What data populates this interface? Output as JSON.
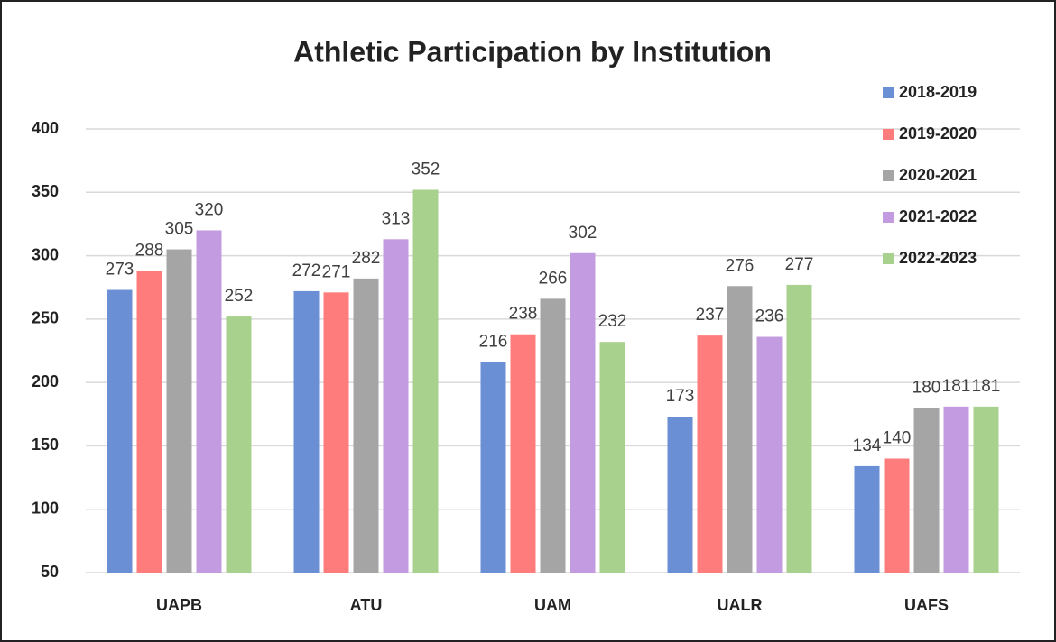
{
  "chart_data": {
    "type": "bar",
    "title": "Athletic Participation by Institution",
    "categories": [
      "UAPB",
      "ATU",
      "UAM",
      "UALR",
      "UAFS"
    ],
    "series": [
      {
        "name": "2018-2019",
        "color": "#6a8fd4",
        "values": [
          273,
          272,
          216,
          173,
          134
        ]
      },
      {
        "name": "2019-2020",
        "color": "#ff7c7c",
        "values": [
          288,
          271,
          238,
          237,
          140
        ]
      },
      {
        "name": "2020-2021",
        "color": "#a5a5a5",
        "values": [
          305,
          282,
          266,
          276,
          180
        ]
      },
      {
        "name": "2021-2022",
        "color": "#c39be0",
        "values": [
          320,
          313,
          302,
          236,
          181
        ]
      },
      {
        "name": "2022-2023",
        "color": "#a9d18e",
        "values": [
          252,
          352,
          232,
          277,
          181
        ]
      }
    ],
    "ylim": [
      50,
      400
    ],
    "yticks": [
      50,
      100,
      150,
      200,
      250,
      300,
      350,
      400
    ],
    "grid": true,
    "legend": "right"
  }
}
